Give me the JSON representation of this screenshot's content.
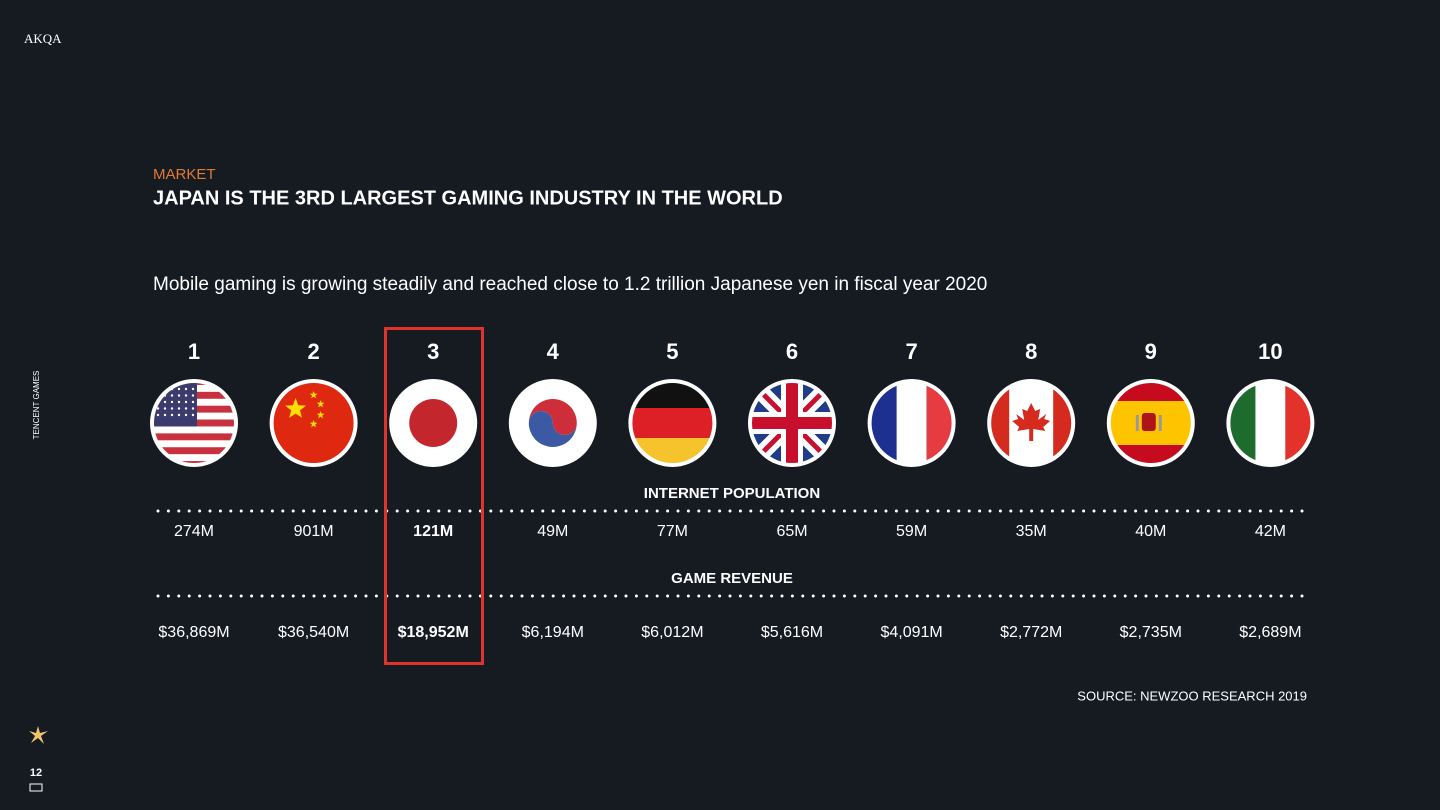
{
  "logo": "AKQA",
  "side_label": "TENCENT GAMES",
  "section": "MARKET",
  "title": "JAPAN IS THE 3RD LARGEST GAMING INDUSTRY IN THE WORLD",
  "subtitle": "Mobile gaming is growing steadily and  reached close to 1.2 trillion Japanese yen in fiscal year 2020",
  "population_heading": "INTERNET POPULATION",
  "revenue_heading": "GAME REVENUE",
  "ranking": [
    {
      "rank": 1,
      "population": "274M",
      "revenue": "$36,869M"
    },
    {
      "rank": 2,
      "population": "901M",
      "revenue": "$36,540M"
    },
    {
      "rank": 3,
      "population": "121M",
      "revenue": "$18,952M"
    },
    {
      "rank": 4,
      "population": "49M",
      "revenue": "$6,194M"
    },
    {
      "rank": 5,
      "population": "77M",
      "revenue": "$6,012M"
    },
    {
      "rank": 6,
      "population": "65M",
      "revenue": "$5,616M"
    },
    {
      "rank": 7,
      "population": "59M",
      "revenue": "$4,091M"
    },
    {
      "rank": 8,
      "population": "35M",
      "revenue": "$2,772M"
    },
    {
      "rank": 9,
      "population": "40M",
      "revenue": "$2,735M"
    },
    {
      "rank": 10,
      "population": "42M",
      "revenue": "$2,689M"
    }
  ],
  "source": "SOURCE: NEWZOO RESEARCH 2019",
  "page_number": 12
}
